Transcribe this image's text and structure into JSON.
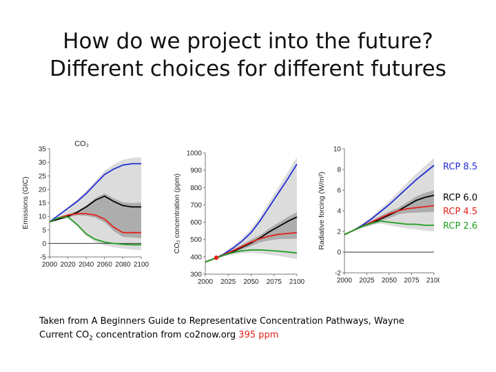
{
  "slide": {
    "title_line1": "How do we project into the future?",
    "title_line2": "Different choices for different futures"
  },
  "legend": [
    {
      "label": "RCP 8.5",
      "color": "#1f2ad6"
    },
    {
      "label": "RCP 6.0",
      "color": "#000000"
    },
    {
      "label": "RCP 4.5",
      "color": "#e3201b"
    },
    {
      "label": "RCP 2.6",
      "color": "#1e9e1e"
    }
  ],
  "caption": {
    "line1": "Taken from A Beginners Guide to Representative Concentration Pathways, Wayne",
    "line2_prefix": "Current CO",
    "line2_sub": "2",
    "line2_mid": " concentration from co2now.org ",
    "line2_value": "395 ppm",
    "value_color": "#e3201b"
  },
  "chart_data": [
    {
      "type": "line",
      "title": "CO₂",
      "xlabel": "",
      "ylabel": "Emissions (GtC)",
      "xlim": [
        2000,
        2100
      ],
      "ylim": [
        -5,
        35
      ],
      "x_ticks": [
        "2000",
        "2020",
        "2040",
        "2060",
        "2080",
        "2100"
      ],
      "y_ticks": [
        "-5",
        "0",
        "5",
        "10",
        "15",
        "20",
        "25",
        "30",
        "35"
      ],
      "x": [
        2000,
        2010,
        2020,
        2030,
        2040,
        2050,
        2060,
        2070,
        2080,
        2090,
        2100
      ],
      "series": [
        {
          "name": "RCP 8.5",
          "color": "#1f2ad6",
          "values": [
            8,
            10.5,
            13,
            15.5,
            18.5,
            22,
            25.5,
            27.5,
            29,
            29.5,
            29.5
          ]
        },
        {
          "name": "RCP 6.0",
          "color": "#000000",
          "values": [
            8,
            9,
            10,
            11.5,
            13.5,
            16,
            17.5,
            15.5,
            14,
            13.5,
            13.5
          ]
        },
        {
          "name": "RCP 4.5",
          "color": "#e3201b",
          "values": [
            8,
            9.5,
            10.5,
            11,
            11,
            10.5,
            9,
            6,
            4,
            4,
            4
          ]
        },
        {
          "name": "RCP 2.6",
          "color": "#1e9e1e",
          "values": [
            8,
            9.5,
            9.8,
            7,
            3.5,
            1.5,
            0.5,
            0,
            -0.3,
            -0.5,
            -0.5
          ]
        }
      ]
    },
    {
      "type": "line",
      "title": "",
      "ylabel": "CO₂ concentration (ppm)",
      "xlim": [
        2000,
        2100
      ],
      "ylim": [
        300,
        1000
      ],
      "x_ticks": [
        "2000",
        "2025",
        "2050",
        "2075",
        "2100"
      ],
      "y_ticks": [
        "300",
        "400",
        "500",
        "600",
        "700",
        "800",
        "900",
        "1000"
      ],
      "marker": {
        "x": 2012,
        "y": 395,
        "color": "#e3201b"
      },
      "x": [
        2000,
        2010,
        2020,
        2030,
        2040,
        2050,
        2060,
        2070,
        2080,
        2090,
        2100
      ],
      "series": [
        {
          "name": "RCP 8.5",
          "color": "#1f2ad6",
          "values": [
            370,
            390,
            415,
            450,
            490,
            540,
            610,
            690,
            770,
            850,
            935
          ]
        },
        {
          "name": "RCP 6.0",
          "color": "#000000",
          "values": [
            370,
            390,
            410,
            430,
            455,
            480,
            510,
            545,
            575,
            605,
            630
          ]
        },
        {
          "name": "RCP 4.5",
          "color": "#e3201b",
          "values": [
            370,
            390,
            412,
            435,
            460,
            485,
            505,
            520,
            530,
            535,
            540
          ]
        },
        {
          "name": "RCP 2.6",
          "color": "#1e9e1e",
          "values": [
            370,
            390,
            410,
            425,
            435,
            440,
            440,
            437,
            433,
            428,
            422
          ]
        }
      ]
    },
    {
      "type": "line",
      "title": "",
      "ylabel": "Radiative forcing (W/m²)",
      "xlim": [
        2000,
        2100
      ],
      "ylim": [
        -2,
        10
      ],
      "x_ticks": [
        "2000",
        "2025",
        "2050",
        "2075",
        "2100"
      ],
      "y_ticks": [
        "-2",
        "0",
        "2",
        "4",
        "6",
        "8",
        "10"
      ],
      "x": [
        2000,
        2010,
        2020,
        2030,
        2040,
        2050,
        2060,
        2070,
        2080,
        2090,
        2100
      ],
      "series": [
        {
          "name": "RCP 8.5",
          "color": "#1f2ad6",
          "values": [
            1.7,
            2.1,
            2.6,
            3.2,
            3.9,
            4.6,
            5.4,
            6.2,
            7.0,
            7.7,
            8.4
          ]
        },
        {
          "name": "RCP 6.0",
          "color": "#000000",
          "values": [
            1.7,
            2.1,
            2.5,
            2.8,
            3.2,
            3.6,
            4.0,
            4.5,
            5.0,
            5.3,
            5.5
          ]
        },
        {
          "name": "RCP 4.5",
          "color": "#e3201b",
          "values": [
            1.7,
            2.1,
            2.5,
            2.9,
            3.3,
            3.7,
            4.0,
            4.2,
            4.3,
            4.4,
            4.5
          ]
        },
        {
          "name": "RCP 2.6",
          "color": "#1e9e1e",
          "values": [
            1.7,
            2.1,
            2.5,
            2.8,
            3.0,
            2.9,
            2.8,
            2.7,
            2.7,
            2.6,
            2.6
          ]
        }
      ]
    }
  ]
}
